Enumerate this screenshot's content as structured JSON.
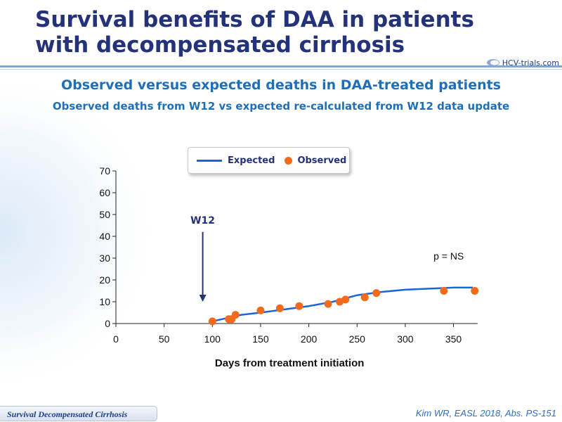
{
  "title": "Survival benefits of DAA in patients with decompensated cirrhosis",
  "logo": "HCV-trials.com",
  "subtitle": "Observed versus expected deaths in DAA-treated patients",
  "subtitle2": "Observed deaths from W12 vs expected re-calculated from W12 data update",
  "footer_tag": "Survival Decompensated Cirrhosis",
  "citation": "Kim WR, EASL 2018, Abs. PS-151",
  "colors": {
    "title": "#24327a",
    "accent": "#1f6fb8",
    "expected": "#1a66d6",
    "observed": "#f26b1d"
  },
  "chart_data": {
    "type": "line",
    "xlabel": "Days from treatment initiation",
    "ylabel": "",
    "xlim": [
      0,
      375
    ],
    "ylim": [
      0,
      70
    ],
    "xticks": [
      0,
      50,
      100,
      150,
      200,
      250,
      300,
      350
    ],
    "yticks": [
      0,
      10,
      20,
      30,
      40,
      50,
      60,
      70
    ],
    "grid": false,
    "legend": "top-center",
    "series": [
      {
        "name": "Expected",
        "kind": "line",
        "x": [
          100,
          110,
          120,
          130,
          150,
          175,
          200,
          225,
          250,
          275,
          300,
          325,
          350,
          370
        ],
        "y": [
          1,
          2,
          3,
          4,
          5,
          6.5,
          8,
          10,
          13,
          14.5,
          15.5,
          16,
          16.5,
          16.5
        ]
      },
      {
        "name": "Observed",
        "kind": "scatter",
        "x": [
          100,
          117,
          120,
          124,
          150,
          170,
          190,
          220,
          232,
          238,
          258,
          270,
          340,
          372
        ],
        "y": [
          1,
          2,
          2,
          4,
          6,
          7,
          8,
          9,
          10,
          11,
          12,
          14,
          15,
          15
        ]
      }
    ],
    "annotations": [
      {
        "text": "W12",
        "x": 90,
        "y_from": 42,
        "y_to": 10
      },
      {
        "text": "p = NS",
        "x": 345,
        "y": 30
      }
    ]
  }
}
